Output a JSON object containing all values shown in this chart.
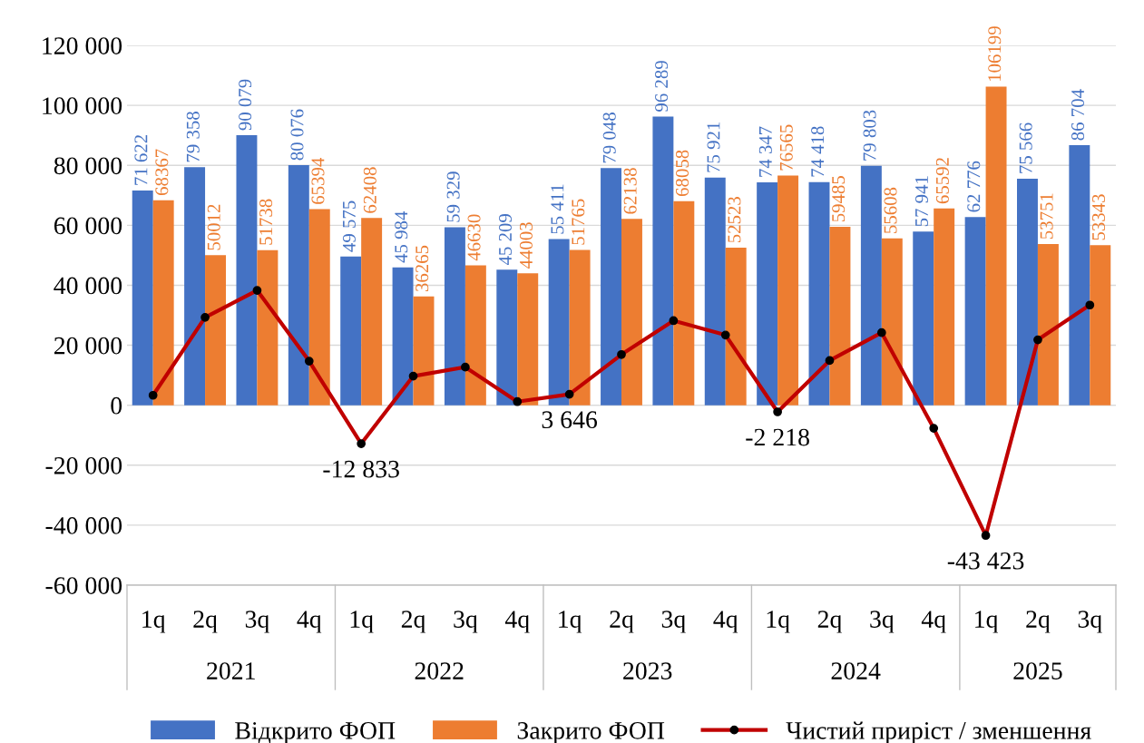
{
  "chart_data": {
    "type": "bar",
    "categories": [
      "1q",
      "2q",
      "3q",
      "4q",
      "1q",
      "2q",
      "3q",
      "4q",
      "1q",
      "2q",
      "3q",
      "4q",
      "1q",
      "2q",
      "3q",
      "4q",
      "1q",
      "2q",
      "3q"
    ],
    "series": [
      {
        "name": "Відкрито ФОП",
        "color": "#4472c4",
        "values": [
          71622,
          79358,
          90079,
          80076,
          49575,
          45984,
          59329,
          45209,
          55411,
          79048,
          96289,
          75921,
          74347,
          74418,
          79803,
          57941,
          62776,
          75566,
          86704
        ],
        "value_labels": [
          "71 622",
          "79 358",
          "90 079",
          "80 076",
          "49 575",
          "45 984",
          "59 329",
          "45 209",
          "55 411",
          "79 048",
          "96 289",
          "75 921",
          "74 347",
          "74 418",
          "79 803",
          "57 941",
          "62 776",
          "75 566",
          "86 704"
        ]
      },
      {
        "name": "Закрито ФОП",
        "color": "#ed7d31",
        "values": [
          68367,
          50012,
          51738,
          65394,
          62408,
          36265,
          46630,
          44003,
          51765,
          62138,
          68058,
          52523,
          76565,
          59485,
          55608,
          65592,
          106199,
          53751,
          53343
        ],
        "value_labels": [
          "68367",
          "50012",
          "51738",
          "65394",
          "62408",
          "36265",
          "46630",
          "44003",
          "51765",
          "62138",
          "68058",
          "52523",
          "76565",
          "59485",
          "55608",
          "65592",
          "106199",
          "53751",
          "53343"
        ]
      },
      {
        "name": "Чистий приріст / зменшення",
        "type": "line",
        "color": "#c00000",
        "marker": "circle",
        "values": [
          3300,
          29300,
          38300,
          14700,
          -12833,
          9700,
          12700,
          1200,
          3646,
          16900,
          28200,
          23400,
          -2218,
          14900,
          24200,
          -7700,
          -43423,
          21800,
          33400
        ],
        "value_labels": [
          null,
          null,
          null,
          null,
          "-12 833",
          null,
          null,
          null,
          "3 646",
          null,
          null,
          null,
          "-2 218",
          null,
          null,
          null,
          "-43 423",
          null,
          null
        ]
      }
    ],
    "ylim": [
      -60000,
      120000
    ],
    "yticks": [
      {
        "value": -60000,
        "label": "-60 000"
      },
      {
        "value": -40000,
        "label": "-40 000"
      },
      {
        "value": -20000,
        "label": "-20 000"
      },
      0,
      {
        "value": 20000,
        "label": "20 000"
      },
      {
        "value": 40000,
        "label": "40 000"
      },
      {
        "value": 60000,
        "label": "60 000"
      },
      {
        "value": 80000,
        "label": "80 000"
      },
      {
        "value": 100000,
        "label": "100 000"
      },
      {
        "value": 120000,
        "label": "120 000"
      }
    ],
    "grid": "y",
    "legend": "bottom",
    "annotations": [
      "2021",
      "2022",
      "2023",
      "2024",
      "2025"
    ]
  }
}
